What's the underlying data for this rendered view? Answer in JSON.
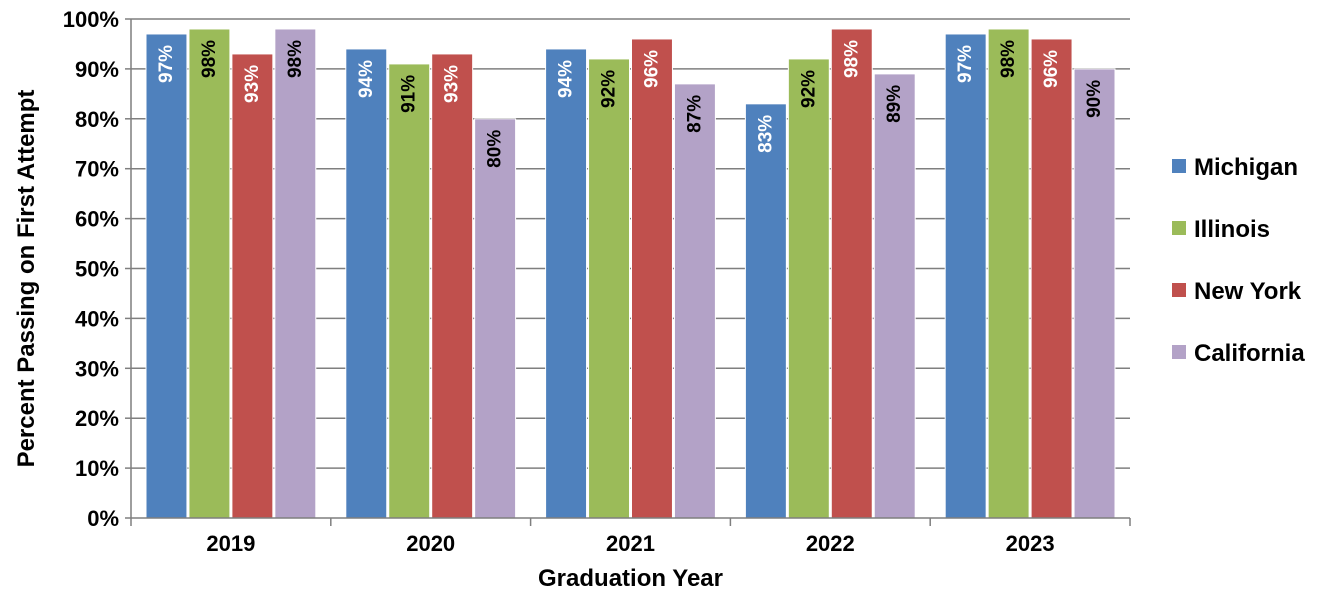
{
  "chart_data": {
    "type": "bar",
    "categories": [
      "2019",
      "2020",
      "2021",
      "2022",
      "2023"
    ],
    "series": [
      {
        "name": "Michigan",
        "color": "#4f81bd",
        "label_color": "#ffffff",
        "values": [
          97,
          94,
          94,
          83,
          97
        ]
      },
      {
        "name": "Illinois",
        "color": "#9bbb59",
        "label_color": "#000000",
        "values": [
          98,
          91,
          92,
          92,
          98
        ]
      },
      {
        "name": "New York",
        "color": "#c0504d",
        "label_color": "#ffffff",
        "values": [
          93,
          93,
          96,
          98,
          96
        ]
      },
      {
        "name": "California",
        "color": "#b3a2c7",
        "label_color": "#000000",
        "values": [
          98,
          80,
          87,
          89,
          90
        ]
      }
    ],
    "data_labels": [
      [
        "97%",
        "98%",
        "93%",
        "98%"
      ],
      [
        "94%",
        "91%",
        "93%",
        "80%"
      ],
      [
        "94%",
        "92%",
        "96%",
        "87%"
      ],
      [
        "83%",
        "92%",
        "98%",
        "89%"
      ],
      [
        "97%",
        "98%",
        "96%",
        "90%"
      ]
    ],
    "y_ticks": [
      0,
      10,
      20,
      30,
      40,
      50,
      60,
      70,
      80,
      90,
      100
    ],
    "y_tick_labels": [
      "0%",
      "10%",
      "20%",
      "30%",
      "40%",
      "50%",
      "60%",
      "70%",
      "80%",
      "90%",
      "100%"
    ],
    "ylim": [
      0,
      100
    ],
    "xlabel": "Graduation Year",
    "ylabel": "Percent Passing on First Attempt",
    "grid": true,
    "legend_position": "right"
  }
}
